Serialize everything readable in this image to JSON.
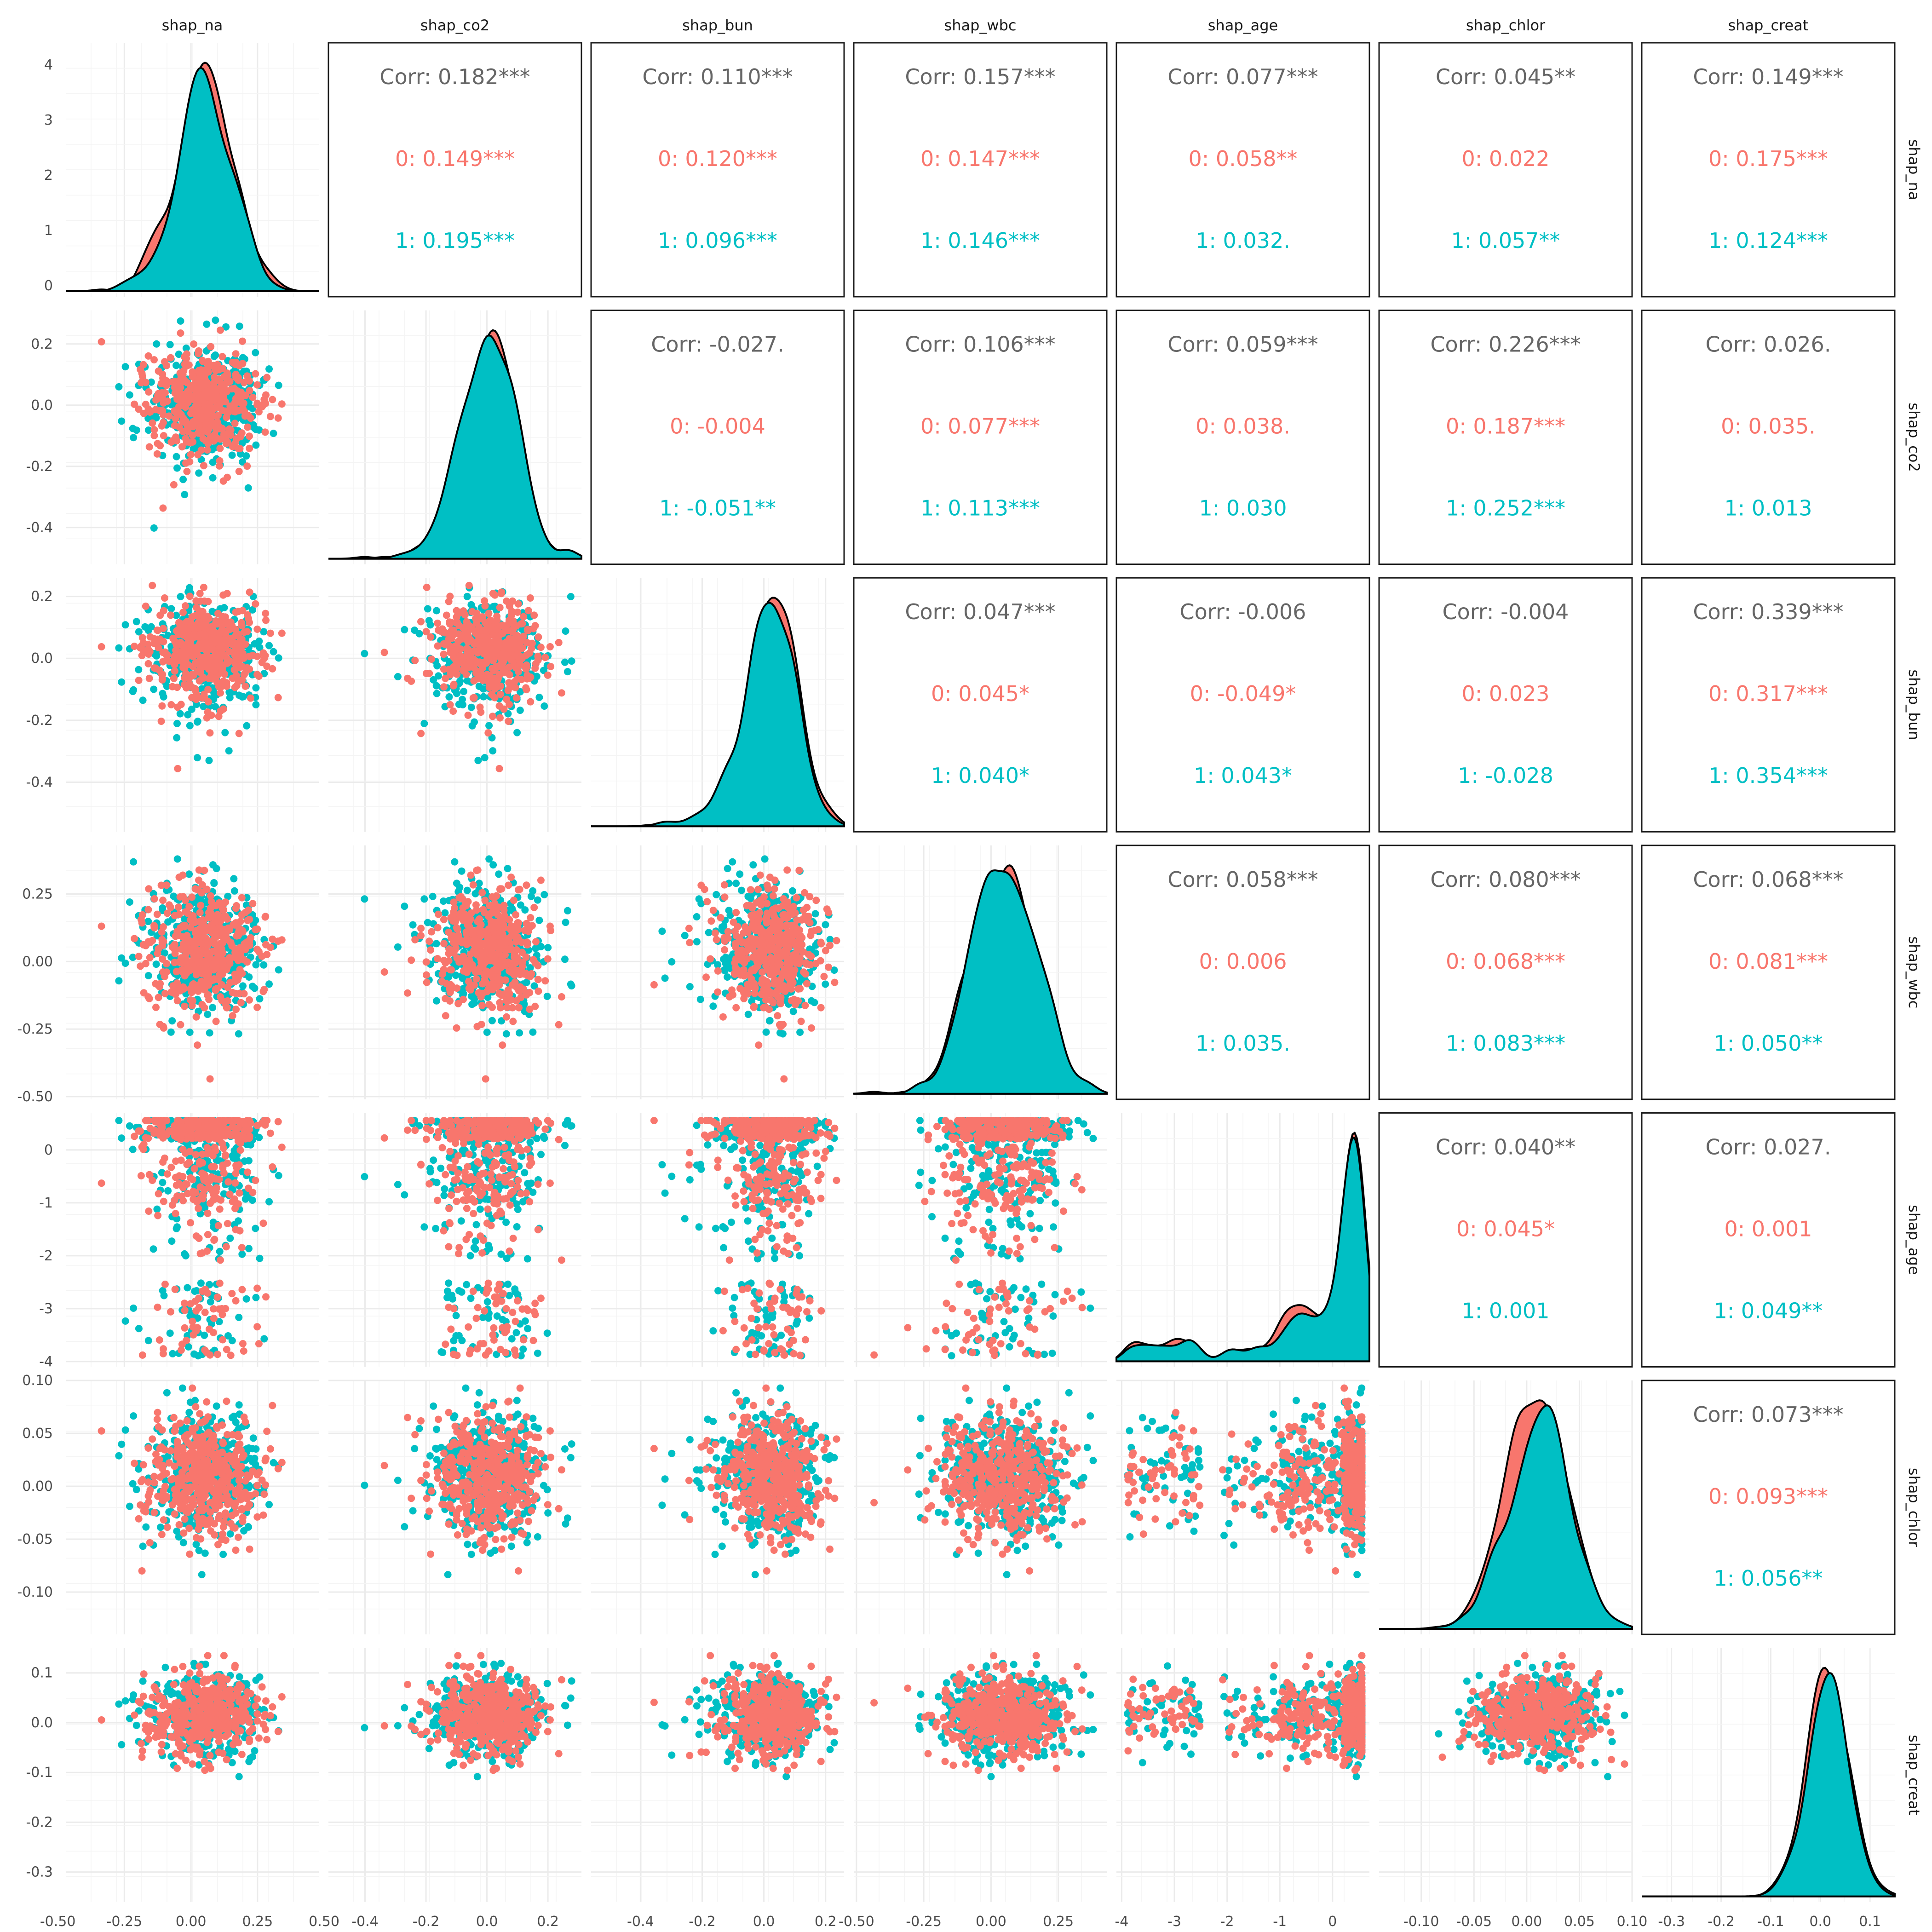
{
  "chart_data": {
    "type": "scatter",
    "variables": [
      "shap_na",
      "shap_co2",
      "shap_bun",
      "shap_wbc",
      "shap_age",
      "shap_chlor",
      "shap_creat"
    ],
    "groups": [
      {
        "name": "0",
        "color": "#F8766D"
      },
      {
        "name": "1",
        "color": "#00BFC4"
      }
    ],
    "axes": [
      {
        "name": "shap_na",
        "range": [
          -0.47,
          0.48
        ],
        "ticks": [
          -0.5,
          -0.25,
          0.0,
          0.25,
          0.5
        ],
        "tick_labels": [
          "-0.50",
          "-0.25",
          "0.00",
          "0.25",
          "0.50"
        ],
        "diag_ticks": [
          0,
          1,
          2,
          3,
          4
        ],
        "diag_range": [
          -0.2,
          4.4
        ]
      },
      {
        "name": "shap_co2",
        "range": [
          -0.52,
          0.31
        ],
        "ticks": [
          -0.4,
          -0.2,
          0.0,
          0.2
        ],
        "tick_labels": [
          "-0.4",
          "-0.2",
          "0.0",
          "0.2"
        ]
      },
      {
        "name": "shap_bun",
        "range": [
          -0.56,
          0.26
        ],
        "ticks": [
          -0.4,
          -0.2,
          0.0,
          0.2
        ],
        "tick_labels": [
          "-0.4",
          "-0.2",
          "0.0",
          "0.2"
        ]
      },
      {
        "name": "shap_wbc",
        "range": [
          -0.51,
          0.43
        ],
        "ticks": [
          -0.5,
          -0.25,
          0.0,
          0.25
        ],
        "tick_labels": [
          "-0.50",
          "-0.25",
          "0.00",
          "0.25"
        ]
      },
      {
        "name": "shap_age",
        "range": [
          -4.1,
          0.7
        ],
        "ticks": [
          -4,
          -3,
          -2,
          -1,
          0
        ],
        "tick_labels": [
          "-4",
          "-3",
          "-2",
          "-1",
          "0"
        ]
      },
      {
        "name": "shap_chlor",
        "range": [
          -0.14,
          0.1
        ],
        "ticks": [
          -0.1,
          -0.05,
          0.0,
          0.05,
          0.1
        ],
        "tick_labels": [
          "-0.10",
          "-0.05",
          "0.00",
          "0.05",
          "0.10"
        ]
      },
      {
        "name": "shap_creat",
        "range": [
          -0.36,
          0.15
        ],
        "ticks": [
          -0.3,
          -0.2,
          -0.1,
          0.0,
          0.1
        ],
        "tick_labels": [
          "-0.3",
          "-0.2",
          "-0.1",
          "0.0",
          "0.1"
        ]
      }
    ],
    "correlations": [
      {
        "row": 0,
        "col": 1,
        "corr": "Corr: 0.182***",
        "g0": "0: 0.149***",
        "g1": "1: 0.195***"
      },
      {
        "row": 0,
        "col": 2,
        "corr": "Corr: 0.110***",
        "g0": "0: 0.120***",
        "g1": "1: 0.096***"
      },
      {
        "row": 0,
        "col": 3,
        "corr": "Corr: 0.157***",
        "g0": "0: 0.147***",
        "g1": "1: 0.146***"
      },
      {
        "row": 0,
        "col": 4,
        "corr": "Corr: 0.077***",
        "g0": "0: 0.058**",
        "g1": "1: 0.032."
      },
      {
        "row": 0,
        "col": 5,
        "corr": "Corr: 0.045**",
        "g0": "0: 0.022",
        "g1": "1: 0.057**"
      },
      {
        "row": 0,
        "col": 6,
        "corr": "Corr: 0.149***",
        "g0": "0: 0.175***",
        "g1": "1: 0.124***"
      },
      {
        "row": 1,
        "col": 2,
        "corr": "Corr: -0.027.",
        "g0": "0: -0.004",
        "g1": "1: -0.051**"
      },
      {
        "row": 1,
        "col": 3,
        "corr": "Corr: 0.106***",
        "g0": "0: 0.077***",
        "g1": "1: 0.113***"
      },
      {
        "row": 1,
        "col": 4,
        "corr": "Corr: 0.059***",
        "g0": "0: 0.038.",
        "g1": "1: 0.030"
      },
      {
        "row": 1,
        "col": 5,
        "corr": "Corr: 0.226***",
        "g0": "0: 0.187***",
        "g1": "1: 0.252***"
      },
      {
        "row": 1,
        "col": 6,
        "corr": "Corr: 0.026.",
        "g0": "0: 0.035.",
        "g1": "1: 0.013"
      },
      {
        "row": 2,
        "col": 3,
        "corr": "Corr: 0.047***",
        "g0": "0: 0.045*",
        "g1": "1: 0.040*"
      },
      {
        "row": 2,
        "col": 4,
        "corr": "Corr: -0.006",
        "g0": "0: -0.049*",
        "g1": "1: 0.043*"
      },
      {
        "row": 2,
        "col": 5,
        "corr": "Corr: -0.004",
        "g0": "0: 0.023",
        "g1": "1: -0.028"
      },
      {
        "row": 2,
        "col": 6,
        "corr": "Corr: 0.339***",
        "g0": "0: 0.317***",
        "g1": "1: 0.354***"
      },
      {
        "row": 3,
        "col": 4,
        "corr": "Corr: 0.058***",
        "g0": "0: 0.006",
        "g1": "1: 0.035."
      },
      {
        "row": 3,
        "col": 5,
        "corr": "Corr: 0.080***",
        "g0": "0: 0.068***",
        "g1": "1: 0.083***"
      },
      {
        "row": 3,
        "col": 6,
        "corr": "Corr: 0.068***",
        "g0": "0: 0.081***",
        "g1": "1: 0.050**"
      },
      {
        "row": 4,
        "col": 5,
        "corr": "Corr: 0.040**",
        "g0": "0: 0.045*",
        "g1": "1: 0.001"
      },
      {
        "row": 4,
        "col": 6,
        "corr": "Corr: 0.027.",
        "g0": "0: 0.001",
        "g1": "1: 0.049**"
      },
      {
        "row": 5,
        "col": 6,
        "corr": "Corr: 0.073***",
        "g0": "0: 0.093***",
        "g1": "1: 0.056**"
      }
    ],
    "densities": [
      {
        "var": "shap_na",
        "peak_value": 0.07,
        "peak_density": 4.3,
        "g0_peak": 0.03,
        "g0_peak_density": 4.2
      },
      {
        "var": "shap_co2",
        "peak_value": 0.02,
        "g0_peak": 0.02
      },
      {
        "var": "shap_bun",
        "peak_value": 0.04,
        "g0_peak": 0.03
      },
      {
        "var": "shap_wbc",
        "modes": [
          -0.02,
          0.14
        ],
        "g0_modes": [
          -0.02,
          0.13
        ]
      },
      {
        "var": "shap_age",
        "peak_value": 0.45,
        "secondary_mode": -3.5
      },
      {
        "var": "shap_chlor",
        "peak_value": 0.02,
        "g0_peak": 0.015
      },
      {
        "var": "shap_creat",
        "peak_value": 0.03,
        "g0_peak": 0.02
      }
    ],
    "grid": true,
    "legend": "none"
  }
}
